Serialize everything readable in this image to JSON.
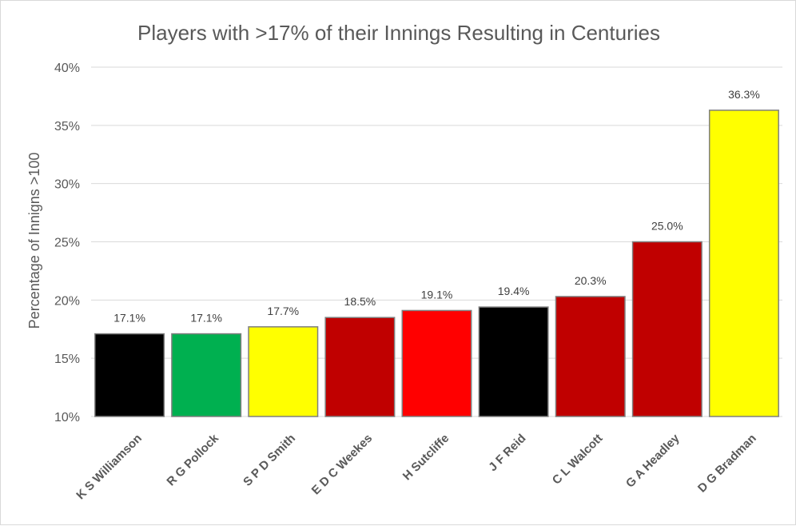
{
  "chart_data": {
    "type": "bar",
    "title": "Players with >17% of their Innings Resulting in Centuries",
    "xlabel": "",
    "ylabel": "Percentage of Innigns >100",
    "ylim": [
      10,
      40
    ],
    "ytick_step": 5,
    "grid": true,
    "legend": "none",
    "categories": [
      "K S Williamson",
      "R G Pollock",
      "S P D Smith",
      "E D C Weekes",
      "H Sutcliffe",
      "J F Reid",
      "C L Walcott",
      "G A Headley",
      "D G Bradman"
    ],
    "values": [
      17.1,
      17.1,
      17.7,
      18.5,
      19.1,
      19.4,
      20.3,
      25.0,
      36.3
    ],
    "data_labels": [
      "17.1%",
      "17.1%",
      "17.7%",
      "18.5%",
      "19.1%",
      "19.4%",
      "20.3%",
      "25.0%",
      "36.3%"
    ],
    "bar_colors": [
      "#000000",
      "#00b050",
      "#ffff00",
      "#c00000",
      "#ff0000",
      "#000000",
      "#c00000",
      "#c00000",
      "#ffff00"
    ],
    "bar_outline_color": "#7f7f7f",
    "gridline_color": "#d9d9d9"
  }
}
